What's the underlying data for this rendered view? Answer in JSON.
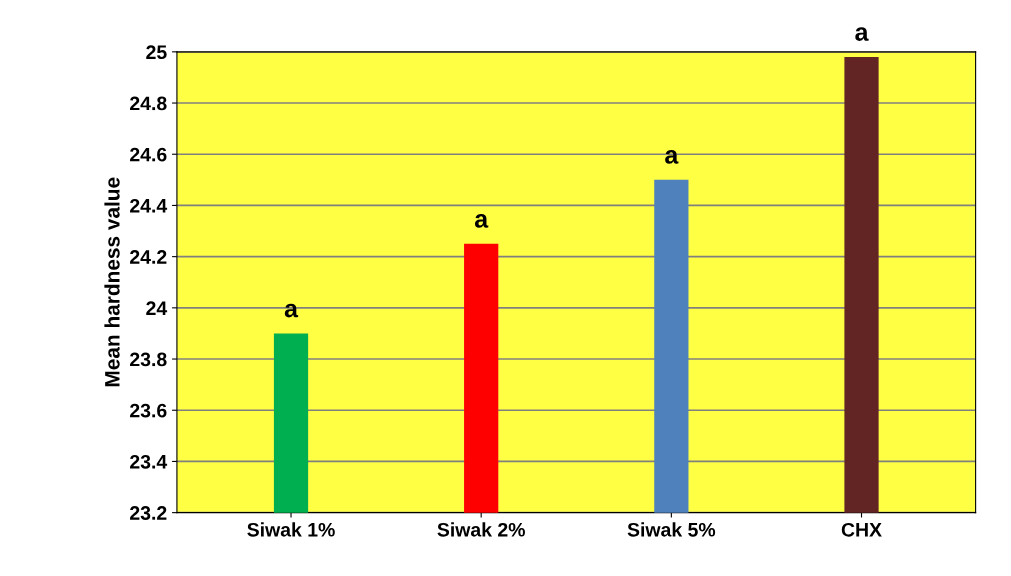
{
  "chart_data": {
    "type": "bar",
    "ylabel": "Mean hardness value",
    "categories": [
      "Siwak 1%",
      "Siwak 2%",
      "Siwak 5%",
      "CHX"
    ],
    "values": [
      23.9,
      24.25,
      24.5,
      24.98
    ],
    "colors": [
      "#00b050",
      "#ff0000",
      "#4f81bd",
      "#632523"
    ],
    "ylim": [
      23.2,
      25
    ],
    "yticks": [
      23.2,
      23.4,
      23.6,
      23.8,
      24,
      24.2,
      24.4,
      24.6,
      24.8,
      25
    ],
    "grid": "y",
    "annotations": [
      {
        "text": "a",
        "x": "Siwak 1%",
        "y": 23.9
      },
      {
        "text": "a",
        "x": "Siwak 2%",
        "y": 24.25
      },
      {
        "text": "a",
        "x": "Siwak 5%",
        "y": 24.5
      },
      {
        "text": "a",
        "x": "CHX",
        "y": 24.98
      }
    ]
  }
}
